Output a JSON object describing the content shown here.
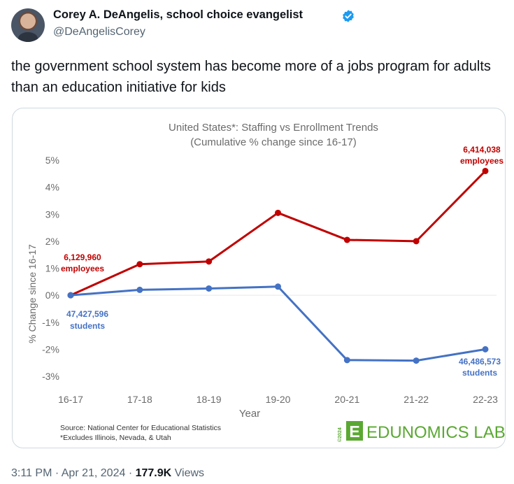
{
  "tweet": {
    "author_name": "Corey A. DeAngelis, school choice evangelist",
    "handle": "@DeAngelisCorey",
    "text": "the government school system has become more of a jobs program for adults than an education initiative for kids",
    "time": "3:11 PM",
    "date": "Apr 21, 2024",
    "separator": "·",
    "views_count": "177.9K",
    "views_label": "Views"
  },
  "chart_data": {
    "type": "line",
    "title": "United States*: Staffing vs Enrollment Trends",
    "subtitle": "(Cumulative % change since 16-17)",
    "xlabel": "Year",
    "ylabel": "% Change since 16-17",
    "ylim": [
      -3,
      5
    ],
    "yticks": [
      "5%",
      "4%",
      "3%",
      "2%",
      "1%",
      "0%",
      "-1%",
      "-2%",
      "-3%"
    ],
    "categories": [
      "16-17",
      "17-18",
      "18-19",
      "19-20",
      "20-21",
      "21-22",
      "22-23"
    ],
    "series": [
      {
        "key": "employees",
        "color": "#c00000",
        "values": [
          0.0,
          1.15,
          1.25,
          3.05,
          2.05,
          2.0,
          4.6
        ]
      },
      {
        "key": "students",
        "color": "#4472c4",
        "values": [
          0.0,
          0.2,
          0.25,
          0.32,
          -2.4,
          -2.42,
          -2.0
        ]
      }
    ],
    "annotations": {
      "employees_start_value": "6,129,960",
      "employees_start_label": "employees",
      "employees_end_value": "6,414,038",
      "employees_end_label": "employees",
      "students_start_value": "47,427,596",
      "students_start_label": "students",
      "students_end_value": "46,486,573",
      "students_end_label": "students"
    },
    "source": "Source: National Center for Educational Statistics",
    "footnote": "*Excludes Illinois, Nevada, & Utah",
    "brand_letter": "E",
    "brand": "EDUNOMICS LAB",
    "brand_year": "©2024",
    "brand_color": "#5aa832"
  }
}
